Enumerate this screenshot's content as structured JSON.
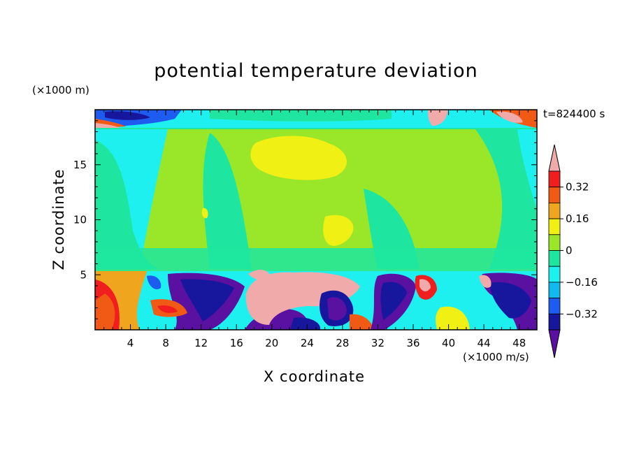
{
  "chart_data": {
    "type": "heatmap",
    "title": "potential temperature deviation",
    "xlabel": "X coordinate",
    "ylabel": "Z coordinate",
    "x_units": "(×1000 m/s)",
    "y_units": "(×1000 m)",
    "time_label": "t=824400 s",
    "xlim": [
      0,
      50
    ],
    "ylim": [
      0,
      20
    ],
    "xticks": [
      4,
      8,
      12,
      16,
      20,
      24,
      28,
      32,
      36,
      40,
      44,
      48
    ],
    "yticks": [
      5,
      10,
      15
    ],
    "colorbar": {
      "levels": [
        -0.4,
        -0.32,
        -0.24,
        -0.16,
        -0.08,
        0,
        0.08,
        0.16,
        0.24,
        0.32,
        0.4
      ],
      "labels": [
        "0.32",
        "0.16",
        "0",
        "-0.16",
        "-0.32"
      ],
      "colors": [
        "#5a10a0",
        "#16179c",
        "#1e5cf0",
        "#12b9f0",
        "#1ef0f0",
        "#1ee6a0",
        "#9ae628",
        "#f0f014",
        "#f0a51e",
        "#f05a14",
        "#f01e1e",
        "#f0aaaa"
      ]
    }
  }
}
